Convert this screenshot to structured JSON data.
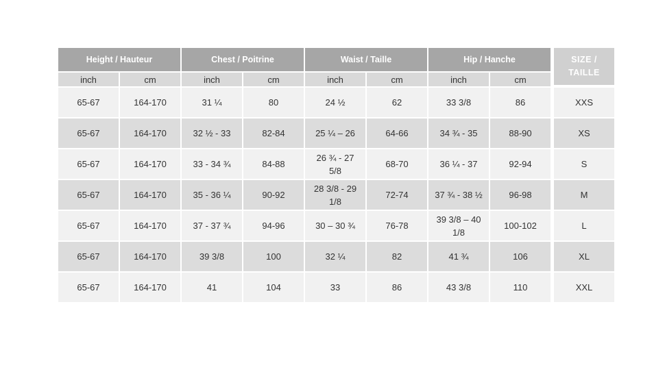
{
  "header": {
    "groups": [
      "Height / Hauteur",
      "Chest / Poitrine",
      "Waist / Taille",
      "Hip / Hanche"
    ],
    "size": "SIZE / TAILLE",
    "units": [
      "inch",
      "cm",
      "inch",
      "cm",
      "inch",
      "cm",
      "inch",
      "cm"
    ]
  },
  "rows": [
    [
      "65-67",
      "164-170",
      "31 ¼",
      "80",
      "24 ½",
      "62",
      "33 3/8",
      "86",
      "XXS"
    ],
    [
      "65-67",
      "164-170",
      "32 ½ - 33",
      "82-84",
      "25 ¼ – 26",
      "64-66",
      "34 ¾  - 35",
      "88-90",
      "XS"
    ],
    [
      "65-67",
      "164-170",
      "33 - 34 ¾",
      "84-88",
      "26 ¾  - 27 5/8",
      "68-70",
      "36 ¼  - 37",
      "92-94",
      "S"
    ],
    [
      "65-67",
      "164-170",
      "35 - 36 ¼",
      "90-92",
      "28 3/8 - 29 1/8",
      "72-74",
      "37 ¾  -  38 ½",
      "96-98",
      "M"
    ],
    [
      "65-67",
      "164-170",
      "37 - 37 ¾",
      "94-96",
      "30 – 30 ¾",
      "76-78",
      "39 3/8 – 40 1/8",
      "100-102",
      "L"
    ],
    [
      "65-67",
      "164-170",
      "39 3/8",
      "100",
      "32 ¼",
      "82",
      "41 ¾",
      "106",
      "XL"
    ],
    [
      "65-67",
      "164-170",
      "41",
      "104",
      "33",
      "86",
      "43 3/8",
      "110",
      "XXL"
    ]
  ]
}
